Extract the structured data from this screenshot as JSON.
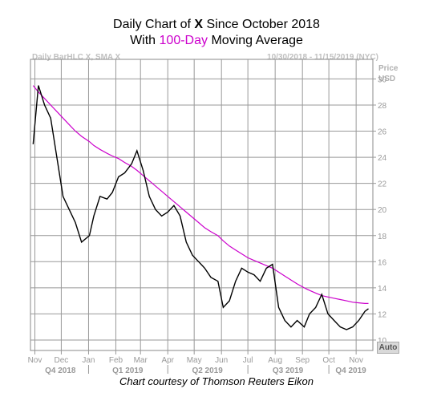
{
  "title": {
    "line1_a": "Daily Chart of ",
    "line1_b": "X",
    "line1_c": " Since October 2018",
    "line2_a": "With ",
    "line2_b": "100-Day",
    "line2_c": " Moving Average"
  },
  "header": {
    "left": "Daily BarHLC X, SMA X",
    "right": "10/30/2018 - 11/15/2019 (NYC)",
    "price_label": "Price",
    "currency_label": "USD"
  },
  "auto_label": "Auto",
  "credit": "Chart courtesy of Thomson Reuters Eikon",
  "colors": {
    "price": "#000000",
    "sma": "#cc00cc",
    "grid": "#999999"
  },
  "chart_data": {
    "type": "line",
    "x_labels": [
      "Nov",
      "Dec",
      "Jan",
      "Feb",
      "Mar",
      "Apr",
      "May",
      "Jun",
      "Jul",
      "Aug",
      "Sep",
      "Oct",
      "Nov"
    ],
    "quarter_labels": [
      "Q4 2018",
      "Q1 2019",
      "Q2 2019",
      "Q3 2019",
      "Q4 2019"
    ],
    "y_ticks": [
      10,
      12,
      14,
      16,
      18,
      20,
      22,
      24,
      26,
      28,
      30
    ],
    "ylim": [
      9.2,
      31.5
    ],
    "x": [
      "2018-10-30",
      "2018-11-05",
      "2018-11-12",
      "2018-11-19",
      "2018-11-26",
      "2018-12-03",
      "2018-12-10",
      "2018-12-17",
      "2018-12-24",
      "2019-01-02",
      "2019-01-07",
      "2019-01-14",
      "2019-01-22",
      "2019-01-28",
      "2019-02-04",
      "2019-02-11",
      "2019-02-19",
      "2019-02-25",
      "2019-03-04",
      "2019-03-11",
      "2019-03-18",
      "2019-03-25",
      "2019-04-01",
      "2019-04-08",
      "2019-04-15",
      "2019-04-22",
      "2019-04-29",
      "2019-05-06",
      "2019-05-13",
      "2019-05-20",
      "2019-05-28",
      "2019-06-03",
      "2019-06-10",
      "2019-06-17",
      "2019-06-24",
      "2019-07-01",
      "2019-07-08",
      "2019-07-15",
      "2019-07-22",
      "2019-07-29",
      "2019-08-05",
      "2019-08-12",
      "2019-08-19",
      "2019-08-26",
      "2019-09-03",
      "2019-09-09",
      "2019-09-16",
      "2019-09-23",
      "2019-09-30",
      "2019-10-07",
      "2019-10-14",
      "2019-10-21",
      "2019-10-28",
      "2019-11-04",
      "2019-11-11",
      "2019-11-15"
    ],
    "series": [
      {
        "values": [
          25.0,
          29.5,
          28.0,
          27.0,
          24.0,
          21.0,
          20.0,
          19.0,
          17.5,
          18.0,
          19.5,
          21.0,
          20.8,
          21.3,
          22.5,
          22.8,
          23.5,
          24.5,
          23.0,
          21.0,
          20.0,
          19.5,
          19.8,
          20.3,
          19.5,
          17.5,
          16.5,
          16.0,
          15.5,
          14.8,
          14.5,
          12.5,
          13.0,
          14.5,
          15.5,
          15.2,
          15.0,
          14.5,
          15.5,
          15.8,
          12.5,
          11.5,
          11.0,
          11.5,
          11.0,
          12.0,
          12.5,
          13.5,
          12.0,
          11.5,
          11.0,
          10.8,
          11.0,
          11.5,
          12.2,
          12.4
        ]
      },
      {
        "name": "100-Day",
        "values": [
          29.5,
          29.0,
          28.5,
          28.0,
          27.5,
          27.0,
          26.5,
          26.0,
          25.6,
          25.2,
          24.9,
          24.6,
          24.3,
          24.1,
          23.9,
          23.6,
          23.3,
          23.0,
          22.6,
          22.2,
          21.8,
          21.4,
          21.0,
          20.6,
          20.2,
          19.8,
          19.4,
          19.0,
          18.6,
          18.3,
          18.0,
          17.6,
          17.2,
          16.9,
          16.6,
          16.3,
          16.1,
          15.9,
          15.7,
          15.5,
          15.2,
          14.9,
          14.6,
          14.3,
          14.0,
          13.8,
          13.6,
          13.4,
          13.3,
          13.2,
          13.1,
          13.0,
          12.9,
          12.85,
          12.8,
          12.8
        ]
      }
    ]
  }
}
